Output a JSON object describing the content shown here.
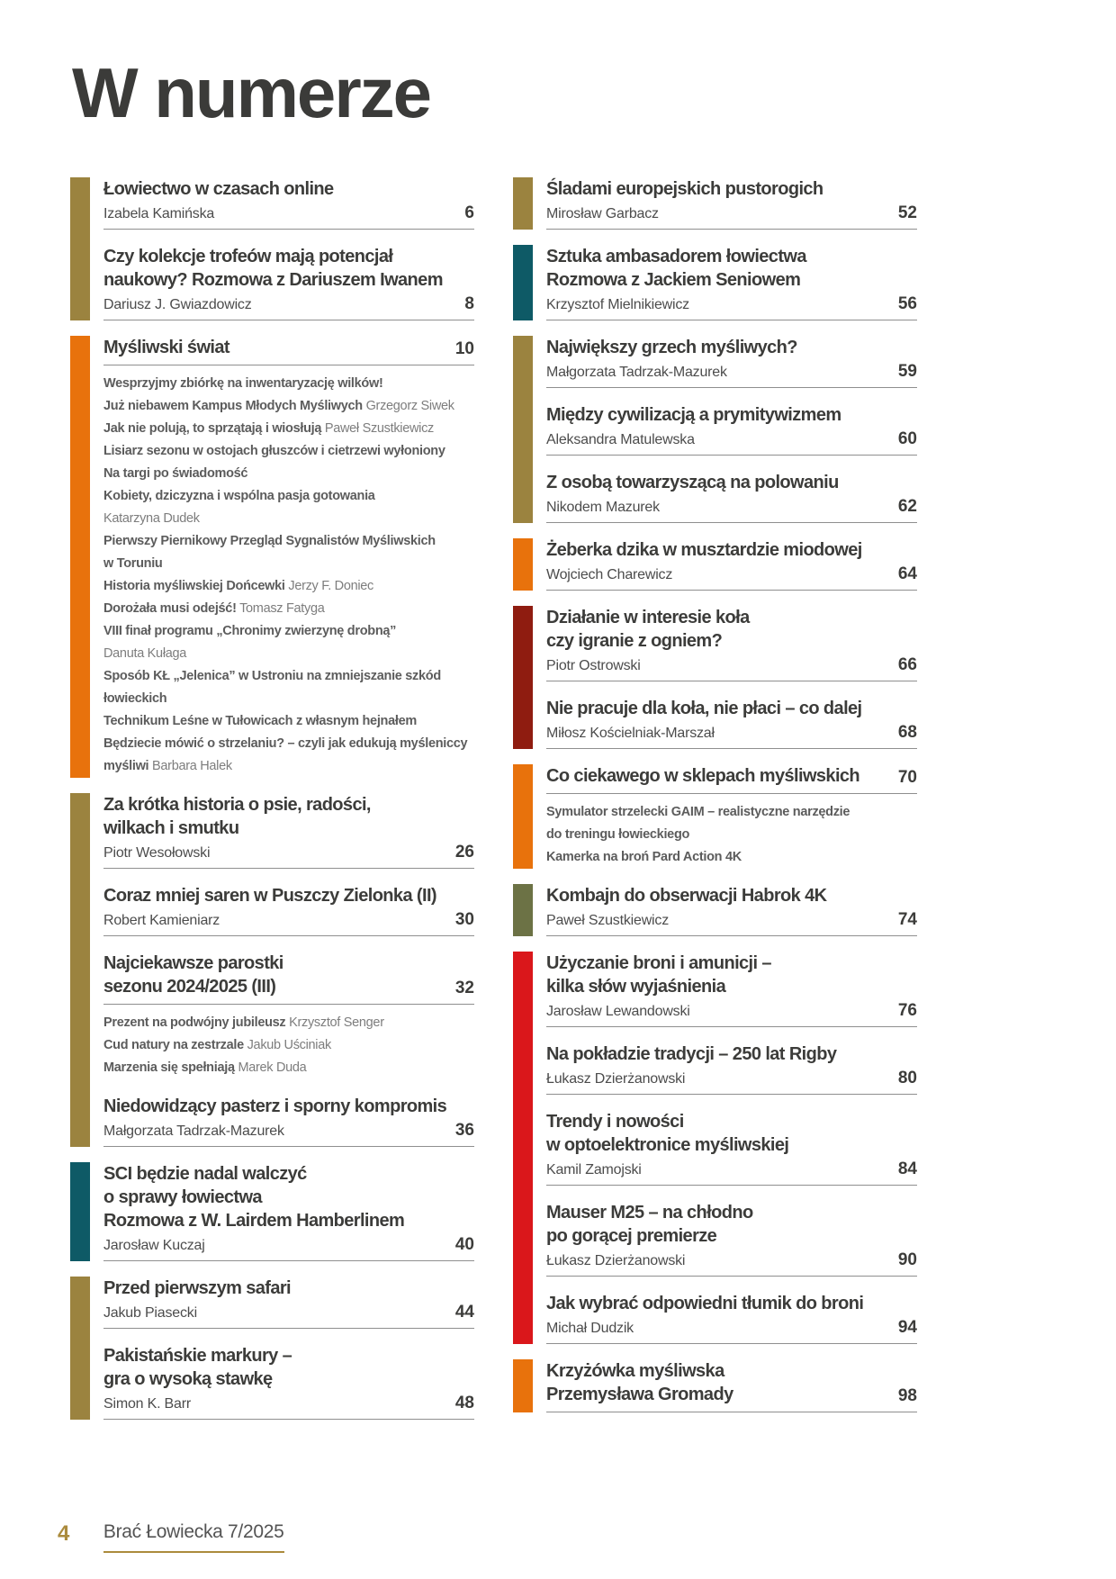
{
  "page_title": "W numerze",
  "footer": {
    "page_number": "4",
    "magazine": "Brać Łowiecka 7/2025"
  },
  "colors": {
    "gold": "#9b833f",
    "orange": "#e8720c",
    "teal": "#0e5a66",
    "dark_red": "#8f1c10",
    "olive": "#6c7245",
    "red": "#da171b"
  },
  "toc": {
    "left": [
      {
        "color": "gold",
        "entries": [
          {
            "title_lines": [
              "Łowiectwo w czasach online"
            ],
            "author": "Izabela Kamińska",
            "page": "6"
          },
          {
            "title_lines": [
              "Czy kolekcje trofeów mają potencjał",
              "naukowy? Rozmowa z Dariuszem Iwanem"
            ],
            "author": "Dariusz J. Gwiazdowicz",
            "page": "8"
          }
        ]
      },
      {
        "color": "orange",
        "entries": [
          {
            "title_lines": [
              "Myśliwski świat"
            ],
            "page": "10",
            "subitems": [
              {
                "bold": "Wesprzyjmy zbiórkę na inwentaryzację wilków!"
              },
              {
                "bold": "Już niebawem Kampus Młodych Myśliwych",
                "normal": " Grzegorz Siwek"
              },
              {
                "bold": "Jak nie polują, to sprzątają i wiosłują",
                "normal": " Paweł Szustkiewicz"
              },
              {
                "bold": "Lisiarz sezonu w ostojach głuszców i cietrzewi wyłoniony"
              },
              {
                "bold": "Na targi po świadomość"
              },
              {
                "bold": "Kobiety, dziczyzna i wspólna pasja gotowania"
              },
              {
                "normal": "Katarzyna Dudek"
              },
              {
                "bold": "Pierwszy Piernikowy Przegląd Sygnalistów Myśliwskich"
              },
              {
                "bold": "w Toruniu"
              },
              {
                "bold": "Historia myśliwskiej Dońcewki",
                "normal": " Jerzy F. Doniec"
              },
              {
                "bold": "Dorożała musi odejść!",
                "normal": " Tomasz Fatyga"
              },
              {
                "bold": "VIII finał programu „Chronimy zwierzynę drobną”"
              },
              {
                "normal": "Danuta Kułaga"
              },
              {
                "bold": "Sposób KŁ „Jelenica” w Ustroniu na zmniejszanie szkód"
              },
              {
                "bold": "łowieckich"
              },
              {
                "bold": "Technikum Leśne w Tułowicach z własnym hejnałem"
              },
              {
                "bold": "Będziecie mówić o strzelaniu? – czyli jak edukują myśleniccy"
              },
              {
                "bold": "myśliwi",
                "normal": " Barbara Halek"
              }
            ]
          }
        ]
      },
      {
        "color": "gold",
        "entries": [
          {
            "title_lines": [
              "Za krótka historia o psie, radości,",
              "wilkach i smutku"
            ],
            "author": "Piotr Wesołowski",
            "page": "26"
          },
          {
            "title_lines": [
              "Coraz mniej saren w Puszczy Zielonka (II)"
            ],
            "author": "Robert Kamieniarz",
            "page": "30"
          },
          {
            "title_lines": [
              "Najciekawsze parostki",
              "sezonu 2024/2025 (III)"
            ],
            "page": "32",
            "subitems": [
              {
                "bold": "Prezent na podwójny jubileusz",
                "normal": " Krzysztof Senger"
              },
              {
                "bold": "Cud natury na zestrzale",
                "normal": " Jakub Uściniak"
              },
              {
                "bold": "Marzenia się spełniają",
                "normal": " Marek Duda"
              }
            ]
          },
          {
            "title_lines": [
              "Niedowidzący pasterz i sporny kompromis"
            ],
            "author": "Małgorzata Tadrzak-Mazurek",
            "page": "36"
          }
        ]
      },
      {
        "color": "teal",
        "entries": [
          {
            "title_lines": [
              "SCI będzie nadal walczyć",
              "o sprawy łowiectwa",
              "Rozmowa z W. Lairdem Hamberlinem"
            ],
            "author": "Jarosław Kuczaj",
            "page": "40"
          }
        ]
      },
      {
        "color": "gold",
        "entries": [
          {
            "title_lines": [
              "Przed pierwszym safari"
            ],
            "author": "Jakub Piasecki",
            "page": "44"
          },
          {
            "title_lines": [
              "Pakistańskie markury –",
              "gra o wysoką stawkę"
            ],
            "author": "Simon K. Barr",
            "page": "48"
          }
        ]
      }
    ],
    "right": [
      {
        "color": "gold",
        "entries": [
          {
            "title_lines": [
              "Śladami europejskich pustorogich"
            ],
            "author": "Mirosław Garbacz",
            "page": "52"
          }
        ]
      },
      {
        "color": "teal",
        "entries": [
          {
            "title_lines": [
              "Sztuka ambasadorem łowiectwa",
              "Rozmowa z Jackiem Seniowem"
            ],
            "author": "Krzysztof Mielnikiewicz",
            "page": "56"
          }
        ]
      },
      {
        "color": "gold",
        "entries": [
          {
            "title_lines": [
              "Największy grzech myśliwych?"
            ],
            "author": "Małgorzata Tadrzak-Mazurek",
            "page": "59"
          },
          {
            "title_lines": [
              "Między cywilizacją a prymitywizmem"
            ],
            "author": "Aleksandra Matulewska",
            "page": "60"
          },
          {
            "title_lines": [
              "Z osobą towarzyszącą na polowaniu"
            ],
            "author": "Nikodem Mazurek",
            "page": "62"
          }
        ]
      },
      {
        "color": "orange",
        "entries": [
          {
            "title_lines": [
              "Żeberka dzika w musztardzie miodowej"
            ],
            "author": "Wojciech Charewicz",
            "page": "64"
          }
        ]
      },
      {
        "color": "dark_red",
        "entries": [
          {
            "title_lines": [
              "Działanie w interesie koła",
              "czy igranie z ogniem?"
            ],
            "author": "Piotr Ostrowski",
            "page": "66"
          },
          {
            "title_lines": [
              "Nie pracuje dla koła, nie płaci – co dalej"
            ],
            "author": "Miłosz Kościelniak-Marszał",
            "page": "68"
          }
        ]
      },
      {
        "color": "orange",
        "entries": [
          {
            "title_lines": [
              "Co ciekawego w sklepach myśliwskich"
            ],
            "page": "70",
            "subitems": [
              {
                "bold": "Symulator strzelecki GAIM – realistyczne narzędzie"
              },
              {
                "bold": "do treningu łowieckiego"
              },
              {
                "bold": "Kamerka na broń Pard Action 4K"
              }
            ]
          }
        ]
      },
      {
        "color": "olive",
        "entries": [
          {
            "title_lines": [
              "Kombajn do obserwacji Habrok 4K"
            ],
            "author": "Paweł Szustkiewicz",
            "page": "74"
          }
        ]
      },
      {
        "color": "red",
        "entries": [
          {
            "title_lines": [
              "Użyczanie broni i amunicji –",
              "kilka słów wyjaśnienia"
            ],
            "author": "Jarosław Lewandowski",
            "page": "76"
          },
          {
            "title_lines": [
              "Na pokładzie tradycji – 250 lat Rigby"
            ],
            "author": "Łukasz Dzierżanowski",
            "page": "80"
          },
          {
            "title_lines": [
              "Trendy i nowości",
              "w optoelektronice myśliwskiej"
            ],
            "author": "Kamil Zamojski",
            "page": "84"
          },
          {
            "title_lines": [
              "Mauser M25 – na chłodno",
              "po gorącej premierze"
            ],
            "author": "Łukasz Dzierżanowski",
            "page": "90"
          },
          {
            "title_lines": [
              "Jak wybrać odpowiedni tłumik do broni"
            ],
            "author": "Michał Dudzik",
            "page": "94"
          }
        ]
      },
      {
        "color": "orange",
        "entries": [
          {
            "title_lines": [
              "Krzyżówka myśliwska",
              "Przemysława Gromady"
            ],
            "page": "98"
          }
        ]
      }
    ]
  }
}
